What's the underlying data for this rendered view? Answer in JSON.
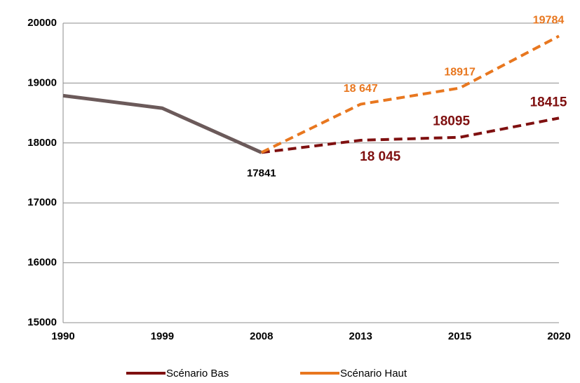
{
  "chart_data": {
    "type": "line",
    "categories": [
      "1990",
      "1999",
      "2008",
      "2013",
      "2015",
      "2020"
    ],
    "series": [
      {
        "color": "#6b5a5a",
        "values": [
          18790,
          18580,
          17841,
          null,
          null,
          null
        ],
        "value_labels": [
          null,
          null,
          "17841",
          null,
          null,
          null
        ],
        "label_color": "#000000",
        "dash": false
      },
      {
        "name": "Scénario Bas",
        "color": "#7f1010",
        "values": [
          null,
          null,
          17841,
          18045,
          18095,
          18415
        ],
        "value_labels": [
          null,
          null,
          null,
          "18 045",
          "18095",
          "18415"
        ],
        "label_color": "#7f1010",
        "dash": true
      },
      {
        "name": "Scénario Haut",
        "color": "#e8771f",
        "values": [
          null,
          null,
          17841,
          18647,
          18917,
          19784
        ],
        "value_labels": [
          null,
          null,
          null,
          "18 647",
          "18917",
          "19784"
        ],
        "label_color": "#e8771f",
        "dash": true
      }
    ],
    "ylim": [
      15000,
      20000
    ],
    "yticks": [
      15000,
      16000,
      17000,
      18000,
      19000,
      20000
    ],
    "grid": true,
    "legend": "bottom"
  }
}
